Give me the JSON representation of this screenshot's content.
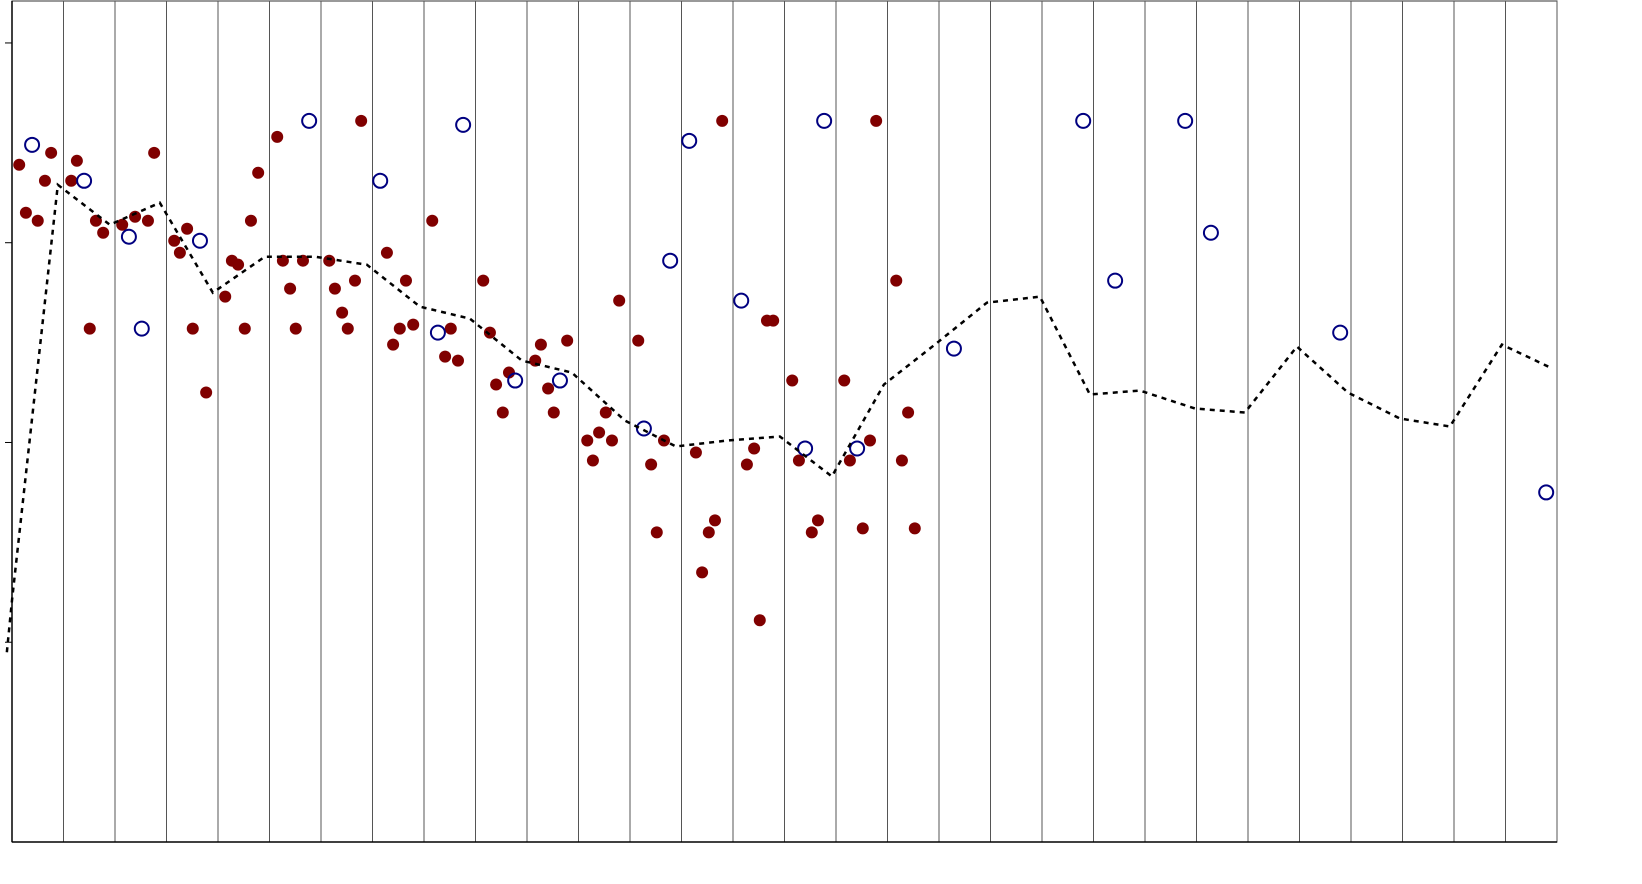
{
  "chart_data": {
    "type": "scatter",
    "xlim": [
      0,
      30
    ],
    "ylim": [
      0,
      4.21
    ],
    "xticks": [
      0,
      1,
      2,
      3,
      4,
      5,
      6,
      7,
      8,
      9,
      10,
      11,
      12,
      13,
      14,
      15,
      16,
      17,
      18,
      19,
      20,
      21,
      22,
      23,
      24,
      25,
      26,
      27,
      28,
      29,
      30
    ],
    "yticks": [
      1,
      2,
      3,
      4
    ],
    "grid": "x",
    "series": [
      {
        "type": "scatter",
        "marker": "filled",
        "color": "#800000",
        "x": [
          0.14,
          0.27,
          0.5,
          0.64,
          0.76,
          1.15,
          1.26,
          1.51,
          1.63,
          1.77,
          2.14,
          2.39,
          2.64,
          2.76,
          3.15,
          3.26,
          3.4,
          3.51,
          3.77,
          4.14,
          4.27,
          4.39,
          4.52,
          4.64,
          4.78,
          5.15,
          5.26,
          5.4,
          5.51,
          5.65,
          6.16,
          6.27,
          6.41,
          6.52,
          6.66,
          6.78,
          7.28,
          7.4,
          7.53,
          7.65,
          7.79,
          8.16,
          8.41,
          8.52,
          8.66,
          9.15,
          9.28,
          9.4,
          9.53,
          9.65,
          10.16,
          10.27,
          10.41,
          10.52,
          10.78,
          11.17,
          11.28,
          11.4,
          11.53,
          11.65,
          11.79,
          12.16,
          12.41,
          12.52,
          12.66,
          13.28,
          13.4,
          13.53,
          13.65,
          13.79,
          14.27,
          14.41,
          14.52,
          14.66,
          14.78,
          15.15,
          15.28,
          15.53,
          15.65,
          16.16,
          16.27,
          16.52,
          16.66,
          16.78,
          17.17,
          17.28,
          17.4,
          17.53
        ],
        "values": [
          3.39,
          3.15,
          3.11,
          3.31,
          3.45,
          3.31,
          3.41,
          2.57,
          3.11,
          3.05,
          3.09,
          3.13,
          3.11,
          3.45,
          3.01,
          2.95,
          3.07,
          2.57,
          2.25,
          2.73,
          2.91,
          2.89,
          2.57,
          3.11,
          3.35,
          3.53,
          2.91,
          2.77,
          2.57,
          2.91,
          2.91,
          2.77,
          2.65,
          2.57,
          2.81,
          3.61,
          2.95,
          2.49,
          2.57,
          2.81,
          2.59,
          3.11,
          2.43,
          2.57,
          2.41,
          2.81,
          2.55,
          2.29,
          2.15,
          2.35,
          2.41,
          2.49,
          2.27,
          2.15,
          2.51,
          2.01,
          1.91,
          2.05,
          2.15,
          2.01,
          2.71,
          2.51,
          1.89,
          1.55,
          2.01,
          1.95,
          1.35,
          1.55,
          1.61,
          3.61,
          1.89,
          1.97,
          1.11,
          2.61,
          2.61,
          2.31,
          1.91,
          1.55,
          1.61,
          2.31,
          1.91,
          1.57,
          2.01,
          3.61,
          2.81,
          1.91,
          2.15,
          1.57
        ]
      },
      {
        "type": "scatter",
        "marker": "open",
        "color": "#000080",
        "x": [
          0.39,
          1.4,
          2.27,
          2.52,
          3.65,
          5.77,
          7.15,
          8.27,
          8.76,
          9.77,
          10.64,
          12.27,
          12.78,
          13.15,
          14.16,
          15.4,
          15.77,
          16.41,
          18.29,
          20.8,
          21.42,
          22.78,
          23.28,
          25.79,
          29.79
        ],
        "values": [
          3.49,
          3.31,
          3.03,
          2.57,
          3.01,
          3.61,
          3.31,
          2.55,
          3.59,
          2.31,
          2.31,
          2.07,
          2.91,
          3.51,
          2.71,
          1.97,
          3.61,
          1.97,
          2.47,
          3.61,
          2.81,
          3.61,
          3.05,
          2.55,
          1.75
        ]
      },
      {
        "type": "line",
        "dash": true,
        "color": "#000000",
        "x": [
          -0.1,
          0,
          0.89,
          1.9,
          2.87,
          3.9,
          4.91,
          5.88,
          6.89,
          7.92,
          8.89,
          9.9,
          10.87,
          11.9,
          12.89,
          13.9,
          14.91,
          15.92,
          16.93,
          17.92,
          18.93,
          19.96,
          20.93,
          21.9,
          22.97,
          23.94,
          24.95,
          25.94,
          26.95,
          27.92,
          28.93,
          29.83
        ],
        "values": [
          0.95,
          1.21,
          3.29,
          3.09,
          3.2,
          2.75,
          2.93,
          2.93,
          2.89,
          2.68,
          2.62,
          2.41,
          2.35,
          2.11,
          1.98,
          2.01,
          2.03,
          1.83,
          2.29,
          2.49,
          2.7,
          2.73,
          2.24,
          2.26,
          2.17,
          2.15,
          2.48,
          2.25,
          2.12,
          2.08,
          2.49,
          2.38
        ]
      }
    ]
  }
}
